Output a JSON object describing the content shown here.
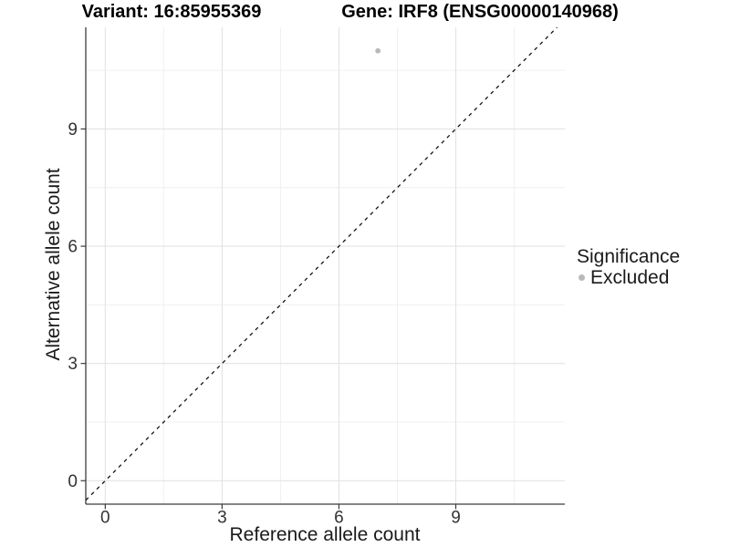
{
  "titles": {
    "variant": "Variant: 16:85955369",
    "gene": "Gene: IRF8 (ENSG00000140968)"
  },
  "legend": {
    "title": "Significance",
    "items": [
      {
        "label": "Excluded",
        "color": "#b9b9b9"
      }
    ]
  },
  "chart_data": {
    "type": "scatter",
    "title": "Variant: 16:85955369 — Gene: IRF8 (ENSG00000140968)",
    "xlabel": "Reference allele count",
    "ylabel": "Alternative allele count",
    "xlim": [
      -0.5,
      11.8
    ],
    "ylim": [
      -0.6,
      11.6
    ],
    "x_major_ticks": [
      0,
      3,
      6,
      9
    ],
    "y_major_ticks": [
      0,
      3,
      6,
      9
    ],
    "x_minor_gridlines": [
      1.5,
      4.5,
      7.5,
      10.5
    ],
    "y_minor_gridlines": [
      1.5,
      4.5,
      7.5,
      10.5
    ],
    "grid": true,
    "legend_position": "right",
    "series": [
      {
        "name": "Excluded",
        "color": "#b9b9b9",
        "points": [
          {
            "x": 7,
            "y": 11
          }
        ]
      }
    ],
    "reference_line": {
      "type": "identity y=x",
      "slope": 1,
      "intercept": 0,
      "style": "dashed",
      "color": "#141414"
    }
  },
  "colors": {
    "background": "#ffffff",
    "grid_major": "#e3e3e3",
    "grid_minor": "#efefef",
    "axis": "#3c3c3c",
    "tick_text": "#333333",
    "point": "#b9b9b9",
    "text": "#000000"
  }
}
